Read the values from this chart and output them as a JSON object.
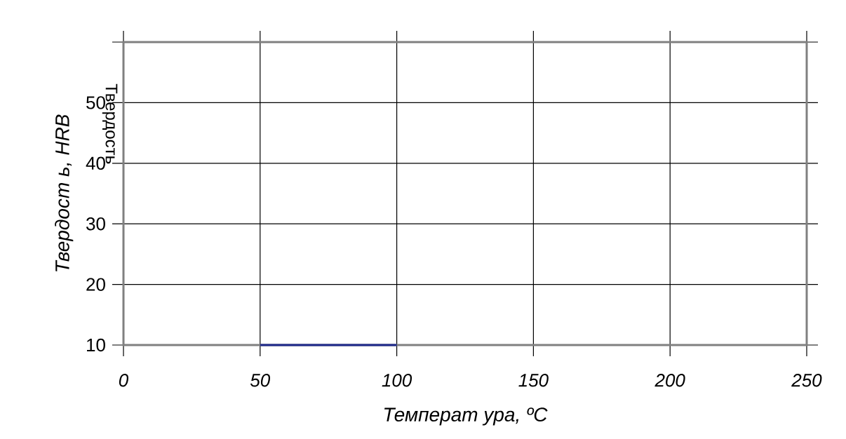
{
  "chart_data": {
    "type": "line",
    "xlabel": "Температ ура, ºC",
    "ylabel": "Твердост ь, HRB",
    "annotations": [
      "Твердость"
    ],
    "x": [
      50,
      100
    ],
    "series": [
      {
        "color": "#1f2a8c",
        "values": [
          10,
          10
        ]
      }
    ],
    "xlim": [
      0,
      250
    ],
    "xticks": [
      0,
      50,
      100,
      150,
      200,
      250
    ],
    "ylim": [
      10,
      60
    ],
    "yticks": [
      10,
      20,
      30,
      40,
      50,
      {
        "value": 60,
        "label": null
      }
    ],
    "grid": true,
    "marker": "none",
    "line_style": "solid"
  }
}
